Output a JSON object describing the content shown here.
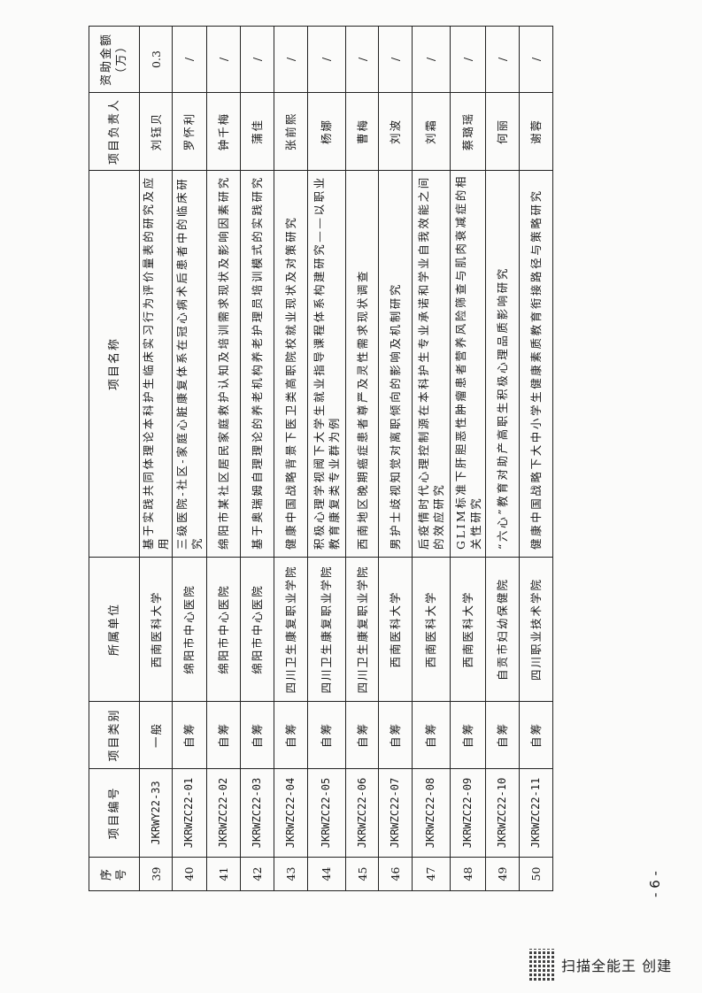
{
  "table": {
    "headers": {
      "seq": "序号",
      "code": "项目编号",
      "category": "项目类别",
      "unit": "所属单位",
      "name": "项目名称",
      "leader": "项目负责人",
      "funding": "资助金额（万）"
    },
    "rows": [
      {
        "seq": "39",
        "code": "JKRWY22-33",
        "category": "一般",
        "unit": "西南医科大学",
        "name": "基于实践共同体理论本科护生临床实习行为评价量表的研究及应用",
        "leader": "刘钰贝",
        "funding": "0.3"
      },
      {
        "seq": "40",
        "code": "JKRWZC22-01",
        "category": "自筹",
        "unit": "绵阳市中心医院",
        "name": "三级医院-社区-家庭心脏康复体系在冠心病术后患者中的临床研究",
        "leader": "罗怀利",
        "funding": "/"
      },
      {
        "seq": "41",
        "code": "JKRWZC22-02",
        "category": "自筹",
        "unit": "绵阳市中心医院",
        "name": "绵阳市某社区居民家庭救护认知及培训需求现状及影响因素研究",
        "leader": "钟千梅",
        "funding": "/"
      },
      {
        "seq": "42",
        "code": "JKRWZC22-03",
        "category": "自筹",
        "unit": "绵阳市中心医院",
        "name": "基于奥瑞姆自理理论的养老机构养老护理员培训模式的实践研究",
        "leader": "蒲佳",
        "funding": "/"
      },
      {
        "seq": "43",
        "code": "JKRWZC22-04",
        "category": "自筹",
        "unit": "四川卫生康复职业学院",
        "name": "健康中国战略背景下医卫类高职院校就业现状及对策研究",
        "leader": "张前熙",
        "funding": "/"
      },
      {
        "seq": "44",
        "code": "JKRWZC22-05",
        "category": "自筹",
        "unit": "四川卫生康复职业学院",
        "name": "积极心理学视阈下大学生就业指导课程体系构建研究——以职业教育康复类专业群为例",
        "leader": "杨娜",
        "funding": "/"
      },
      {
        "seq": "45",
        "code": "JKRWZC22-06",
        "category": "自筹",
        "unit": "四川卫生康复职业学院",
        "name": "西南地区晚期癌症患者尊严及灵性需求现状调查",
        "leader": "曹梅",
        "funding": "/"
      },
      {
        "seq": "46",
        "code": "JKRWZC22-07",
        "category": "自筹",
        "unit": "西南医科大学",
        "name": "男护士歧视知觉对离职倾向的影响及机制研究",
        "leader": "刘波",
        "funding": "/"
      },
      {
        "seq": "47",
        "code": "JKRWZC22-08",
        "category": "自筹",
        "unit": "西南医科大学",
        "name": "后疫情时代心理控制源在本科护生专业承诺和学业自我效能之间的效应研究",
        "leader": "刘霜",
        "funding": "/"
      },
      {
        "seq": "48",
        "code": "JKRWZC22-09",
        "category": "自筹",
        "unit": "西南医科大学",
        "name": "GLIM标准下肝胆恶性肿瘤患者营养风险筛查与肌肉衰减症的相关性研究",
        "leader": "蔡璐瑶",
        "funding": "/"
      },
      {
        "seq": "49",
        "code": "JKRWZC22-10",
        "category": "自筹",
        "unit": "自贡市妇幼保健院",
        "name": "“六心”教育对助产高职生积极心理品质影响研究",
        "leader": "何丽",
        "funding": "/"
      },
      {
        "seq": "50",
        "code": "JKRWZC22-11",
        "category": "自筹",
        "unit": "四川职业技术学院",
        "name": "健康中国战略下大中小学生健康素质教育衔接路径与策略研究",
        "leader": "谢蓉",
        "funding": "/"
      }
    ]
  },
  "page_number": "- 6 -",
  "footer": {
    "watermark": "扫描全能王 创建",
    "icon": "qr-code-icon"
  }
}
